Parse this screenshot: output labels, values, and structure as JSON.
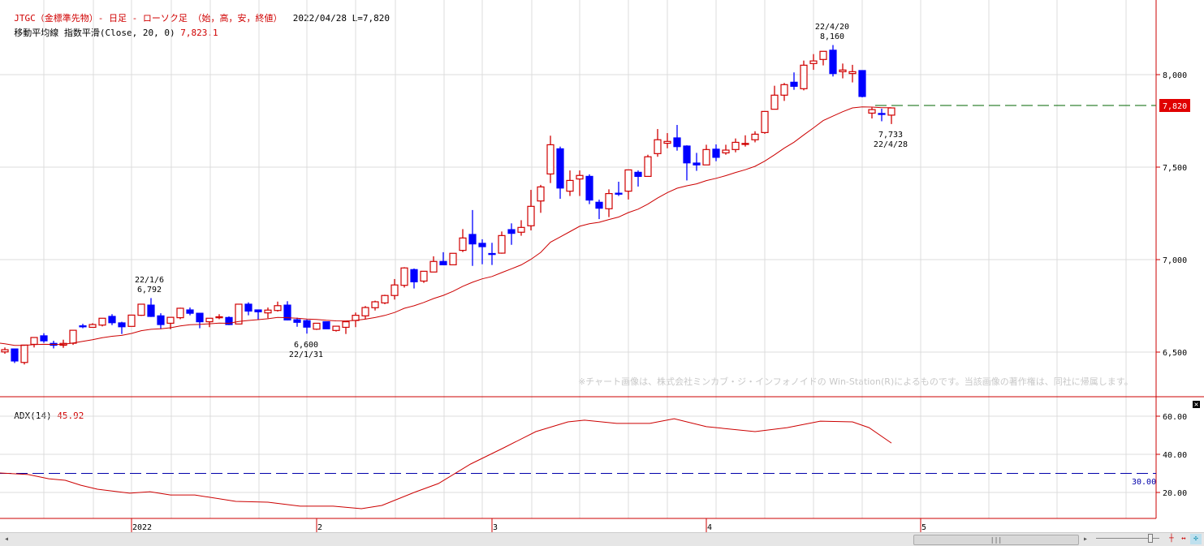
{
  "header": {
    "title": "JTGC（金標準先物）- 日足 - ローソク足 （始，高，安，終値）",
    "date": "2022/04/28",
    "last": "L=7,820",
    "ma_label": "移動平均線 指数平滑(Close, 20, 0)",
    "ma_value": "7,823.1"
  },
  "adx_panel": {
    "label": "ADX(14)",
    "value": "45.92",
    "threshold_label": "30.00"
  },
  "copyright": "※チャート画像は、株式会社ミンカブ・ジ・インフォノイドの Win-Station(R)によるものです。当該画像の著作権は、同社に帰属します。",
  "price_box": "7,820",
  "annotations": {
    "a1_date": "22/1/6",
    "a1_price": "6,792",
    "a2_price": "6,600",
    "a2_date": "22/1/31",
    "a3_date": "22/4/20",
    "a3_price": "8,160",
    "a4_price": "7,733",
    "a4_date": "22/4/28"
  },
  "y_ticks": [
    "6,500",
    "7,000",
    "7,500",
    "8,000"
  ],
  "adx_ticks": [
    "20.00",
    "40.00",
    "60.00"
  ],
  "months": [
    "2022",
    "2",
    "3",
    "4",
    "5"
  ],
  "scroll": {
    "thumb_label": "|||"
  },
  "colors": {
    "up": "#d00000",
    "down": "#0000ff",
    "ema": "#cc0000",
    "adx": "#cc0000",
    "threshold": "#0000aa",
    "last_line": "#006600"
  },
  "chart_data": [
    {
      "type": "candlestick",
      "title": "JTGC（金標準先物）- 日足",
      "ylim": [
        6350,
        8350
      ],
      "y_ticks": [
        6500,
        7000,
        7500,
        8000
      ],
      "month_starts": [
        {
          "label": "2022",
          "index": 13
        },
        {
          "label": "2",
          "index": 32
        },
        {
          "label": "3",
          "index": 50
        },
        {
          "label": "4",
          "index": 72
        },
        {
          "label": "5",
          "index": 94
        }
      ],
      "last_price": 7820,
      "ema": {
        "period": 20,
        "seed": 6548,
        "last": 7823.1
      },
      "fields": [
        "open",
        "high",
        "low",
        "close"
      ],
      "candles": [
        [
          6501,
          6525,
          6491,
          6513
        ],
        [
          6517,
          6517,
          6441,
          6452
        ],
        [
          6444,
          6538,
          6433,
          6538
        ],
        [
          6542,
          6579,
          6525,
          6579
        ],
        [
          6588,
          6602,
          6550,
          6561
        ],
        [
          6547,
          6561,
          6520,
          6537
        ],
        [
          6537,
          6567,
          6523,
          6547
        ],
        [
          6548,
          6618,
          6539,
          6618
        ],
        [
          6642,
          6653,
          6629,
          6640
        ],
        [
          6634,
          6656,
          6632,
          6649
        ],
        [
          6646,
          6683,
          6639,
          6683
        ],
        [
          6693,
          6705,
          6646,
          6659
        ],
        [
          6658,
          6664,
          6598,
          6637
        ],
        [
          6639,
          6700,
          6639,
          6700
        ],
        [
          6699,
          6759,
          6696,
          6759
        ],
        [
          6754,
          6792,
          6690,
          6693
        ],
        [
          6696,
          6710,
          6624,
          6649
        ],
        [
          6656,
          6688,
          6624,
          6688
        ],
        [
          6686,
          6740,
          6678,
          6737
        ],
        [
          6728,
          6741,
          6699,
          6710
        ],
        [
          6710,
          6710,
          6629,
          6664
        ],
        [
          6664,
          6683,
          6635,
          6683
        ],
        [
          6688,
          6705,
          6678,
          6691
        ],
        [
          6687,
          6693,
          6646,
          6649
        ],
        [
          6652,
          6759,
          6652,
          6759
        ],
        [
          6759,
          6769,
          6699,
          6722
        ],
        [
          6728,
          6728,
          6674,
          6718
        ],
        [
          6712,
          6741,
          6683,
          6727
        ],
        [
          6725,
          6773,
          6719,
          6751
        ],
        [
          6754,
          6775,
          6671,
          6674
        ],
        [
          6675,
          6686,
          6637,
          6661
        ],
        [
          6670,
          6676,
          6600,
          6635
        ],
        [
          6624,
          6656,
          6620,
          6656
        ],
        [
          6664,
          6664,
          6626,
          6626
        ],
        [
          6617,
          6640,
          6611,
          6640
        ],
        [
          6634,
          6664,
          6598,
          6664
        ],
        [
          6671,
          6714,
          6635,
          6699
        ],
        [
          6696,
          6749,
          6678,
          6741
        ],
        [
          6740,
          6778,
          6725,
          6772
        ],
        [
          6766,
          6810,
          6759,
          6806
        ],
        [
          6806,
          6895,
          6784,
          6863
        ],
        [
          6861,
          6959,
          6849,
          6955
        ],
        [
          6946,
          6952,
          6844,
          6880
        ],
        [
          6884,
          6937,
          6874,
          6937
        ],
        [
          6933,
          7018,
          6933,
          6990
        ],
        [
          6990,
          7040,
          6971,
          6972
        ],
        [
          6972,
          7034,
          6972,
          7034
        ],
        [
          7050,
          7165,
          7041,
          7117
        ],
        [
          7136,
          7268,
          6966,
          7085
        ],
        [
          7088,
          7110,
          6975,
          7070
        ],
        [
          7033,
          7091,
          6971,
          7032
        ],
        [
          7035,
          7152,
          7032,
          7130
        ],
        [
          7162,
          7196,
          7080,
          7142
        ],
        [
          7148,
          7213,
          7129,
          7174
        ],
        [
          7183,
          7377,
          7158,
          7288
        ],
        [
          7317,
          7404,
          7253,
          7393
        ],
        [
          7463,
          7670,
          7414,
          7621
        ],
        [
          7599,
          7611,
          7329,
          7387
        ],
        [
          7370,
          7482,
          7344,
          7428
        ],
        [
          7436,
          7482,
          7344,
          7455
        ],
        [
          7450,
          7461,
          7300,
          7322
        ],
        [
          7310,
          7324,
          7219,
          7278
        ],
        [
          7275,
          7380,
          7230,
          7357
        ],
        [
          7359,
          7421,
          7344,
          7358
        ],
        [
          7370,
          7485,
          7325,
          7485
        ],
        [
          7472,
          7482,
          7395,
          7450
        ],
        [
          7450,
          7567,
          7450,
          7556
        ],
        [
          7573,
          7706,
          7556,
          7648
        ],
        [
          7629,
          7684,
          7602,
          7639
        ],
        [
          7658,
          7728,
          7589,
          7611
        ],
        [
          7614,
          7618,
          7428,
          7523
        ],
        [
          7522,
          7577,
          7480,
          7512
        ],
        [
          7512,
          7621,
          7512,
          7595
        ],
        [
          7597,
          7623,
          7532,
          7553
        ],
        [
          7577,
          7621,
          7567,
          7592
        ],
        [
          7595,
          7655,
          7580,
          7634
        ],
        [
          7625,
          7672,
          7611,
          7628
        ],
        [
          7648,
          7694,
          7634,
          7678
        ],
        [
          7687,
          7801,
          7680,
          7801
        ],
        [
          7813,
          7940,
          7813,
          7889
        ],
        [
          7889,
          7955,
          7858,
          7946
        ],
        [
          7959,
          8012,
          7918,
          7937
        ],
        [
          7924,
          8076,
          7915,
          8051
        ],
        [
          8060,
          8111,
          8026,
          8074
        ],
        [
          8082,
          8126,
          8050,
          8126
        ],
        [
          8132,
          8160,
          7990,
          8006
        ],
        [
          8016,
          8060,
          7980,
          8025
        ],
        [
          8006,
          8053,
          7958,
          8016
        ],
        [
          8022,
          8022,
          7877,
          7882
        ],
        [
          7792,
          7822,
          7763,
          7811
        ],
        [
          7790,
          7816,
          7748,
          7789
        ],
        [
          7781,
          7820,
          7733,
          7820
        ]
      ]
    },
    {
      "type": "line",
      "title": "ADX(14)",
      "ylim": [
        0,
        65
      ],
      "y_ticks": [
        20,
        40,
        60
      ],
      "threshold": 30,
      "points": [
        [
          -0.5,
          30.2
        ],
        [
          2.4,
          29.4
        ],
        [
          4.5,
          27.2
        ],
        [
          6.2,
          26.4
        ],
        [
          7.8,
          23.8
        ],
        [
          9.5,
          21.7
        ],
        [
          12.8,
          19.6
        ],
        [
          14.9,
          20.4
        ],
        [
          17,
          18.7
        ],
        [
          19.5,
          18.7
        ],
        [
          23.7,
          15.3
        ],
        [
          27,
          14.9
        ],
        [
          30.3,
          12.8
        ],
        [
          33.7,
          12.8
        ],
        [
          36.6,
          11.5
        ],
        [
          38.7,
          13.2
        ],
        [
          42,
          20
        ],
        [
          44.5,
          24.7
        ],
        [
          47.8,
          34.9
        ],
        [
          51.2,
          43.4
        ],
        [
          54.5,
          51.9
        ],
        [
          57.8,
          57
        ],
        [
          59.5,
          57.9
        ],
        [
          62.8,
          56.2
        ],
        [
          66.2,
          56.2
        ],
        [
          68.7,
          58.7
        ],
        [
          72,
          54.5
        ],
        [
          77,
          51.9
        ],
        [
          80.3,
          54
        ],
        [
          83.7,
          57.4
        ],
        [
          87,
          57
        ],
        [
          88.7,
          54
        ],
        [
          91,
          45.92
        ]
      ]
    }
  ]
}
